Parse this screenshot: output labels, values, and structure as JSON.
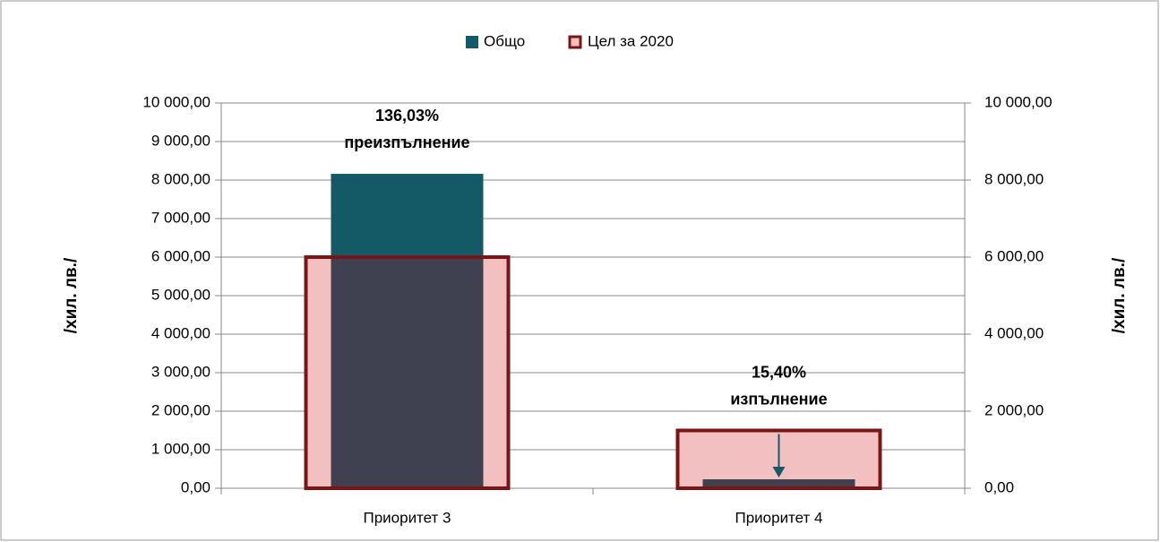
{
  "chart_data": {
    "type": "bar",
    "categories": [
      "Приоритет 3",
      "Приоритет 4"
    ],
    "series": [
      {
        "name": "Общо",
        "color": "#135a66",
        "values": [
          8162,
          231
        ]
      },
      {
        "name": "Цел за 2020",
        "color": "#f2c0c0",
        "edgecolor": "#7b1416",
        "axis": "y2",
        "values": [
          6000,
          1500
        ]
      }
    ],
    "overlap_color": "#404150",
    "annotations": [
      [
        "136,03%",
        "преизпълнение"
      ],
      [
        "15,40%",
        "изпълнение"
      ]
    ],
    "ylabel": "/хил. лв./",
    "y2label": "/хил. лв./",
    "ylim": [
      0,
      10000
    ],
    "yticks": [
      {
        "value": 0,
        "label": "0,00"
      },
      {
        "value": 1000,
        "label": "1 000,00"
      },
      {
        "value": 2000,
        "label": "2 000,00"
      },
      {
        "value": 3000,
        "label": "3 000,00"
      },
      {
        "value": 4000,
        "label": "4 000,00"
      },
      {
        "value": 5000,
        "label": "5 000,00"
      },
      {
        "value": 6000,
        "label": "6 000,00"
      },
      {
        "value": 7000,
        "label": "7 000,00"
      },
      {
        "value": 8000,
        "label": "8 000,00"
      },
      {
        "value": 9000,
        "label": "9 000,00"
      },
      {
        "value": 10000,
        "label": "10 000,00"
      }
    ],
    "y2lim": [
      0,
      10000
    ],
    "y2ticks": [
      {
        "value": 0,
        "label": "0,00"
      },
      {
        "value": 2000,
        "label": "2 000,00"
      },
      {
        "value": 4000,
        "label": "4 000,00"
      },
      {
        "value": 6000,
        "label": "6 000,00"
      },
      {
        "value": 8000,
        "label": "8 000,00"
      },
      {
        "value": 10000,
        "label": "10 000,00"
      }
    ],
    "grid": true,
    "legend": "top"
  }
}
